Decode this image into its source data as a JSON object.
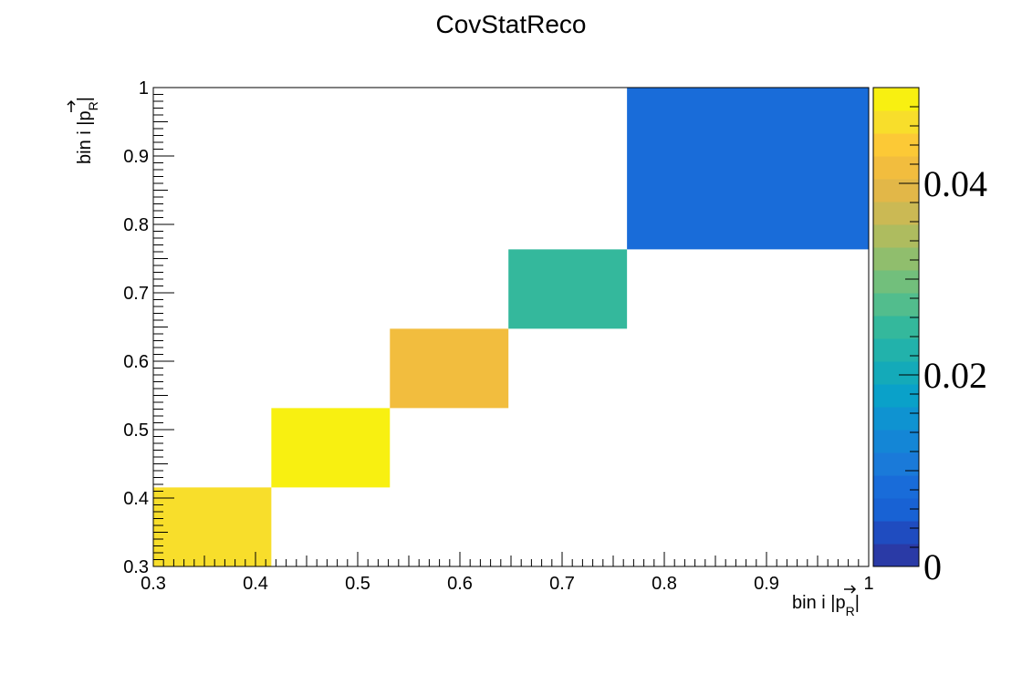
{
  "chart_data": {
    "type": "heatmap",
    "title": "CovStatReco",
    "xlabel": "bin i |p⃗R|",
    "ylabel": "bin i |p⃗R|",
    "xlim": [
      0.3,
      1.0
    ],
    "ylim": [
      0.3,
      1.0
    ],
    "x_ticks": [
      "0.3",
      "0.4",
      "0.5",
      "0.6",
      "0.7",
      "0.8",
      "0.9",
      "1"
    ],
    "y_ticks": [
      "0.3",
      "0.4",
      "0.5",
      "0.6",
      "0.7",
      "0.8",
      "0.9",
      "1"
    ],
    "bin_edges": [
      0.3,
      0.4155,
      0.5315,
      0.6475,
      0.7635,
      1.0
    ],
    "cells": [
      {
        "xbin": 0,
        "ybin": 0,
        "value": 0.0465
      },
      {
        "xbin": 1,
        "ybin": 1,
        "value": 0.0485
      },
      {
        "xbin": 2,
        "ybin": 2,
        "value": 0.0415
      },
      {
        "xbin": 3,
        "ybin": 3,
        "value": 0.026
      },
      {
        "xbin": 4,
        "ybin": 4,
        "value": 0.0085
      }
    ],
    "colorbar": {
      "zlim": [
        0,
        0.05
      ],
      "ticks": [
        "0",
        "0.02",
        "0.04"
      ]
    },
    "palette": [
      "#2a3aa6",
      "#1f4cc0",
      "#1862d4",
      "#196cd9",
      "#1a7ad9",
      "#1486d6",
      "#0f93d1",
      "#0aa1c9",
      "#14aab9",
      "#22b2ab",
      "#34b89c",
      "#52bd8d",
      "#72bf7c",
      "#90be6d",
      "#aebc5f",
      "#cbb954",
      "#e2b748",
      "#f2bd3e",
      "#fcc936",
      "#f8de2b",
      "#f8f011"
    ]
  }
}
